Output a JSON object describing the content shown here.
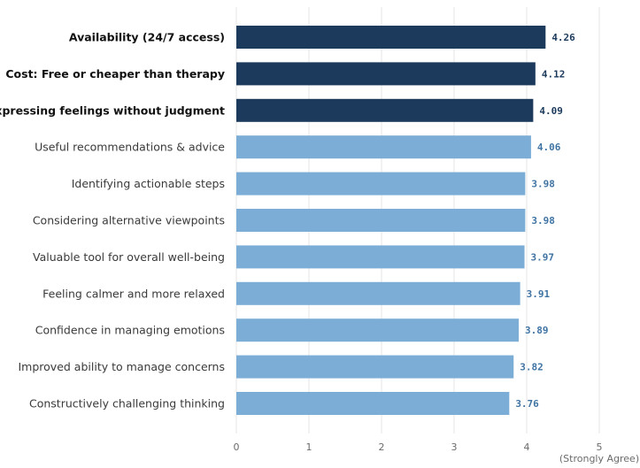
{
  "chart_data": {
    "type": "bar",
    "orientation": "horizontal",
    "categories": [
      "Availability (24/7 access)",
      "Cost: Free or cheaper than therapy",
      "Expressing feelings without judgment",
      "Useful recommendations & advice",
      "Identifying actionable steps",
      "Considering alternative viewpoints",
      "Valuable tool for overall well-being",
      "Feeling calmer and more relaxed",
      "Confidence in managing emotions",
      "Improved ability to manage concerns",
      "Constructively challenging thinking"
    ],
    "values": [
      4.26,
      4.12,
      4.09,
      4.06,
      3.98,
      3.98,
      3.97,
      3.91,
      3.89,
      3.82,
      3.76
    ],
    "value_labels": [
      "4.26",
      "4.12",
      "4.09",
      "4.06",
      "3.98",
      "3.98",
      "3.97",
      "3.91",
      "3.89",
      "3.82",
      "3.76"
    ],
    "highlighted": [
      true,
      true,
      true,
      false,
      false,
      false,
      false,
      false,
      false,
      false,
      false
    ],
    "xlim": [
      0,
      5
    ],
    "xticks": [
      "0",
      "1",
      "2",
      "3",
      "4",
      "5"
    ],
    "xtick_sublabel": "(Strongly Agree)",
    "grid": "vertical",
    "title": "",
    "xlabel": "",
    "ylabel": "",
    "colors": {
      "highlight_bar": "#1b3a5c",
      "regular_bar": "#7badd6",
      "highlight_label": "#1b3a5c",
      "regular_label": "#3f73a3",
      "grid": "#e6e6e6"
    }
  }
}
